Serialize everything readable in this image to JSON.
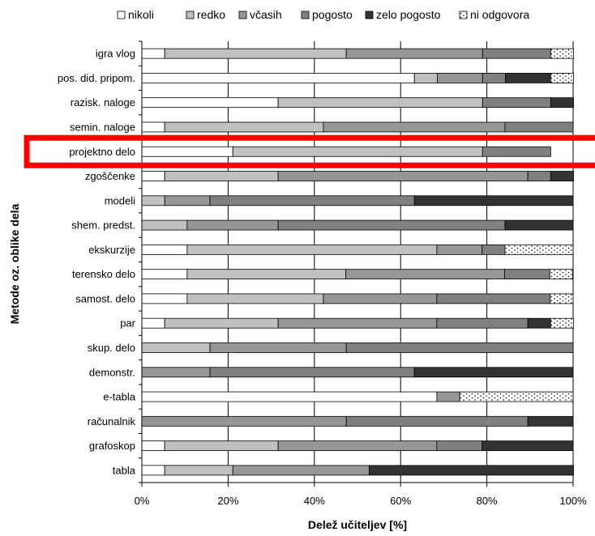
{
  "chart_data": {
    "type": "bar",
    "orientation": "horizontal",
    "stacked": true,
    "percent": true,
    "xlabel": "Delež učiteljev [%]",
    "ylabel": "Metode oz. oblike dela",
    "xlim": [
      0,
      100
    ],
    "xticks": [
      "0%",
      "20%",
      "40%",
      "60%",
      "80%",
      "100%"
    ],
    "grid": "vertical",
    "legend_position": "top",
    "categories": [
      "igra vlog",
      "pos. did. pripom.",
      "razisk. naloge",
      "semin. naloge",
      "projektno delo",
      "zgoščenke",
      "modeli",
      "shem. predst.",
      "ekskurzije",
      "terensko delo",
      "samost. delo",
      "par",
      "skup. delo",
      "demonstr.",
      "e-tabla",
      "računalnik",
      "grafoskop",
      "tabla"
    ],
    "series": [
      {
        "name": "nikoli",
        "color": "#ffffff",
        "values": [
          5.3,
          63.2,
          31.6,
          5.3,
          21.1,
          5.3,
          0,
          0,
          10.5,
          10.5,
          10.5,
          5.3,
          0,
          0,
          68.4,
          0,
          5.3,
          5.3
        ]
      },
      {
        "name": "redko",
        "color": "#c0c0c0",
        "values": [
          42.1,
          5.3,
          47.4,
          36.8,
          57.9,
          26.3,
          5.3,
          10.5,
          57.9,
          36.8,
          31.6,
          26.3,
          15.8,
          0,
          0,
          0,
          26.3,
          15.8
        ]
      },
      {
        "name": "včasih",
        "color": "#969696",
        "values": [
          31.6,
          10.5,
          0,
          42.1,
          0,
          57.9,
          10.5,
          21.1,
          10.5,
          36.8,
          26.3,
          36.8,
          31.6,
          15.8,
          5.3,
          47.4,
          36.8,
          31.6
        ]
      },
      {
        "name": "pogosto",
        "color": "#808080",
        "values": [
          15.8,
          5.3,
          15.8,
          15.8,
          15.8,
          5.3,
          47.4,
          52.6,
          5.3,
          10.5,
          26.3,
          21.1,
          52.6,
          47.4,
          0,
          42.1,
          10.5,
          0
        ]
      },
      {
        "name": "zelo pogosto",
        "color": "#333333",
        "values": [
          0,
          10.5,
          5.3,
          0,
          0,
          5.3,
          36.8,
          15.8,
          0,
          0,
          0,
          5.3,
          0,
          36.8,
          0,
          10.5,
          21.1,
          47.4
        ]
      },
      {
        "name": "ni odgovora",
        "color": "#ffffff",
        "pattern": "dots",
        "values": [
          5.3,
          5.3,
          0,
          0,
          0,
          0,
          0,
          0,
          15.8,
          5.3,
          5.3,
          5.3,
          0,
          0,
          26.3,
          0,
          0,
          0
        ]
      }
    ],
    "highlight": {
      "category": "projektno delo",
      "color": "#ff0000"
    }
  }
}
